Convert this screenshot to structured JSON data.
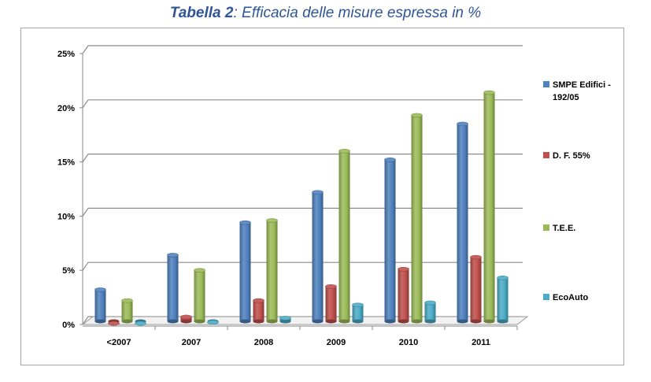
{
  "title": {
    "bold": "Tabella 2",
    "rest": ": Efficacia delle misure espressa in %"
  },
  "chart_data": {
    "type": "bar",
    "style": "3d-cylinder clustered",
    "title": "Tabella 2: Efficacia delle misure espressa in %",
    "categories": [
      "<2007",
      "2007",
      "2008",
      "2009",
      "2010",
      "2011"
    ],
    "y_ticks": [
      "0%",
      "5%",
      "10%",
      "15%",
      "20%",
      "25%"
    ],
    "ylim": [
      0,
      25
    ],
    "y_unit": "%",
    "grid": true,
    "legend_position": "right",
    "series": [
      {
        "name": "SMPE Edifici - 192/05",
        "color": "#4f81bd",
        "values": [
          3.2,
          6.4,
          9.4,
          12.2,
          15.2,
          18.5
        ]
      },
      {
        "name": "D. F. 55%",
        "color": "#c0504d",
        "values": [
          0.1,
          0.7,
          2.2,
          3.5,
          5.1,
          6.2
        ]
      },
      {
        "name": "T.E.E.",
        "color": "#9bbb59",
        "values": [
          2.2,
          5.0,
          9.6,
          16.0,
          19.3,
          21.4
        ]
      },
      {
        "name": "EcoAuto",
        "color": "#4bacc6",
        "values": [
          0.1,
          0.2,
          0.6,
          1.8,
          2.0,
          4.3
        ]
      }
    ]
  }
}
